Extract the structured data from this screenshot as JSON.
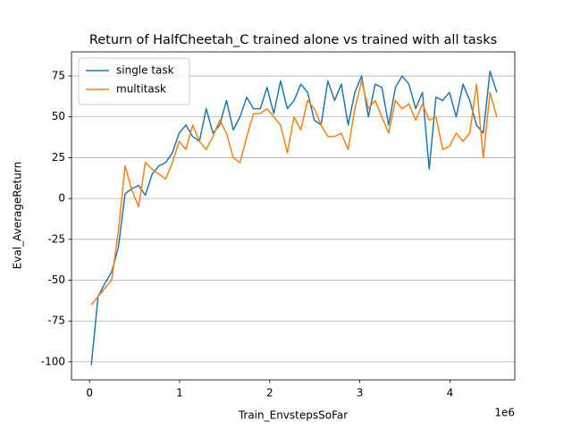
{
  "chart_data": {
    "type": "line",
    "title": "Return of HalfCheetah_C trained alone vs trained with all tasks",
    "x_label": "Train_EnvstepsSoFar",
    "y_label": "Eval_AverageReturn",
    "x_offset_label": "1e6",
    "x": [
      0.02,
      0.095,
      0.17,
      0.245,
      0.32,
      0.395,
      0.47,
      0.545,
      0.62,
      0.695,
      0.77,
      0.845,
      0.92,
      0.995,
      1.07,
      1.145,
      1.22,
      1.295,
      1.37,
      1.445,
      1.52,
      1.595,
      1.67,
      1.745,
      1.82,
      1.895,
      1.97,
      2.045,
      2.12,
      2.195,
      2.27,
      2.345,
      2.42,
      2.495,
      2.57,
      2.645,
      2.72,
      2.795,
      2.87,
      2.945,
      3.02,
      3.095,
      3.17,
      3.245,
      3.32,
      3.395,
      3.47,
      3.545,
      3.62,
      3.695,
      3.77,
      3.845,
      3.92,
      3.995,
      4.07,
      4.145,
      4.22,
      4.295,
      4.37,
      4.445,
      4.52
    ],
    "series": [
      {
        "name": "single task",
        "color": "#1f77b4",
        "values": [
          -102,
          -60,
          -52,
          -45,
          -30,
          3,
          6,
          8,
          2,
          15,
          20,
          22,
          28,
          40,
          45,
          38,
          35,
          55,
          40,
          45,
          60,
          42,
          50,
          62,
          55,
          55,
          68,
          52,
          72,
          55,
          60,
          70,
          65,
          48,
          45,
          72,
          60,
          70,
          45,
          65,
          75,
          50,
          70,
          68,
          45,
          68,
          75,
          70,
          55,
          65,
          18,
          62,
          60,
          65,
          50,
          70,
          60,
          45,
          40,
          78,
          65
        ]
      },
      {
        "name": "multitask",
        "color": "#ff7f0e",
        "values": [
          -65,
          -60,
          -55,
          -50,
          -20,
          20,
          5,
          -5,
          22,
          18,
          15,
          12,
          22,
          35,
          30,
          45,
          35,
          30,
          38,
          48,
          40,
          25,
          22,
          38,
          52,
          52,
          55,
          50,
          45,
          28,
          50,
          42,
          60,
          55,
          45,
          38,
          38,
          40,
          30,
          55,
          72,
          55,
          60,
          50,
          40,
          60,
          55,
          58,
          48,
          58,
          48,
          50,
          30,
          32,
          40,
          35,
          40,
          70,
          25,
          65,
          50
        ]
      }
    ],
    "xlim": [
      -0.2,
      4.72
    ],
    "ylim": [
      -111,
      89.8
    ],
    "xticks": [
      0,
      1,
      2,
      3,
      4
    ],
    "yticks": [
      -100,
      -75,
      -50,
      -25,
      0,
      25,
      50,
      75
    ],
    "grid": "y",
    "legend": "upper left"
  }
}
